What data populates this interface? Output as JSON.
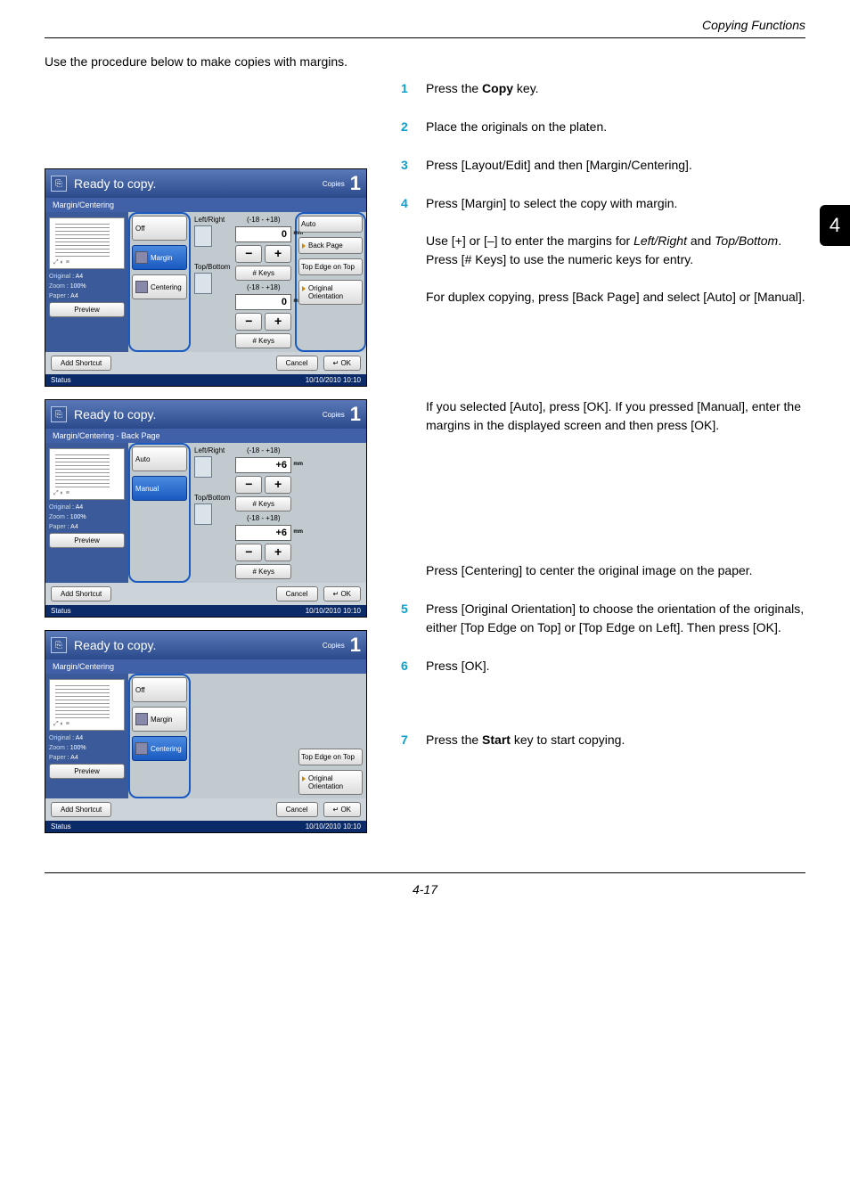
{
  "page": {
    "header_section": "Copying Functions",
    "intro": "Use the procedure below to make copies with margins.",
    "footer_pagenum": "4-17",
    "side_chapter_num": "4"
  },
  "steps": [
    {
      "num": "1",
      "html": "Press the <b>Copy</b> key."
    },
    {
      "num": "2",
      "html": "Place the originals on the platen."
    },
    {
      "num": "3",
      "html": "Press [Layout/Edit] and then [Margin/Centering]."
    },
    {
      "num": "4",
      "html": "Press [Margin] to select the copy with margin.<br><br>Use [+] or [–] to enter the margins for <i>Left/Right</i> and <i>Top/Bottom</i>. Press [# Keys] to use the numeric keys for entry.<br><br>For duplex copying, press [Back Page] and select [Auto] or [Manual]."
    },
    {
      "num": "",
      "html": "If you selected [Auto], press [OK]. If you pressed [Manual], enter the margins in the displayed screen and then press [OK]."
    },
    {
      "num": "",
      "html": "Press [Centering] to center the original image on the paper."
    },
    {
      "num": "5",
      "html": "Press [Original Orientation] to choose the orientation of the originals, either [Top Edge on Top] or [Top Edge on Left]. Then press [OK]."
    },
    {
      "num": "6",
      "html": "Press [OK]."
    },
    {
      "num": "7",
      "html": "Press the <b>Start</b> key to start copying."
    }
  ],
  "common": {
    "title": "Ready to copy.",
    "copies_label": "Copies",
    "copies_value": "1",
    "status_label": "Status",
    "timestamp": "10/10/2010  10:10",
    "add_shortcut": "Add Shortcut",
    "cancel": "Cancel",
    "ok": "OK",
    "preview": "Preview",
    "original_label": "Original",
    "zoom_label": "Zoom",
    "paper_label": "Paper",
    "original_val": ": A4",
    "zoom_val": ": 100%",
    "paper_val": ": A4",
    "left_right": "Left/Right",
    "top_bottom": "Top/Bottom",
    "range": "(-18 - +18)",
    "mm": "mm",
    "numkeys": "# Keys"
  },
  "panel1": {
    "subtitle": "Margin/Centering",
    "opts": {
      "off": "Off",
      "margin": "Margin",
      "centering": "Centering"
    },
    "lr_val": "0",
    "tb_val": "0",
    "side": {
      "auto": "Auto",
      "backpage": "Back Page",
      "topedge": "Top Edge on Top",
      "orient": "Original Orientation"
    }
  },
  "panel2": {
    "subtitle": "Margin/Centering - Back Page",
    "opts": {
      "auto": "Auto",
      "manual": "Manual"
    },
    "lr_val": "+6",
    "tb_val": "+6"
  },
  "panel3": {
    "subtitle": "Margin/Centering",
    "opts": {
      "off": "Off",
      "margin": "Margin",
      "centering": "Centering"
    },
    "side": {
      "topedge": "Top Edge on Top",
      "orient": "Original Orientation"
    }
  },
  "colors": {
    "accent": "#0aa0d0",
    "panel_header_top": "#5a79b8",
    "panel_header_bot": "#2a4a8c",
    "panel_frame": "#1b3d7a",
    "panel_body": "#c0cacf",
    "preview_bg": "#3a5a9a",
    "btn_sel_top": "#4a8ae0",
    "btn_sel_bot": "#1a5ac0"
  }
}
